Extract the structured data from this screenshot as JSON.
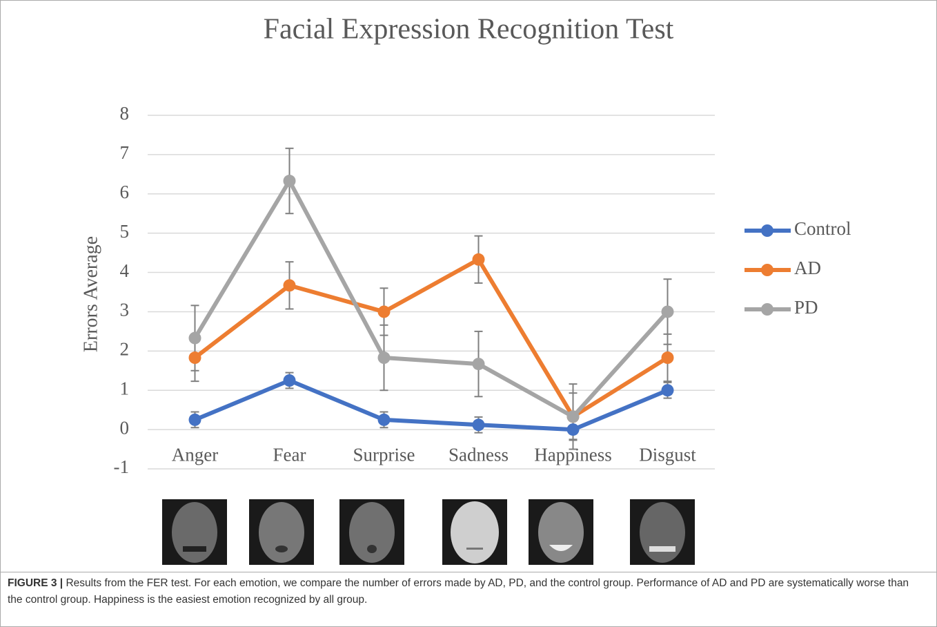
{
  "chart_data": {
    "type": "line",
    "title": "Facial Expression Recognition Test",
    "y_label": "Errors Average",
    "categories": [
      "Anger",
      "Fear",
      "Surprise",
      "Sadness",
      "Happiness",
      "Disgust"
    ],
    "series": [
      {
        "name": "Control",
        "color": "#4472c4",
        "values": [
          0.25,
          1.25,
          0.25,
          0.12,
          0,
          1.0
        ],
        "errors": [
          0.2,
          0.2,
          0.2,
          0.2,
          0.25,
          0.2
        ]
      },
      {
        "name": "AD",
        "color": "#ed7d31",
        "values": [
          1.83,
          3.67,
          3.0,
          4.33,
          0.33,
          1.83
        ],
        "errors": [
          0.6,
          0.6,
          0.6,
          0.6,
          0.6,
          0.6
        ]
      },
      {
        "name": "PD",
        "color": "#a5a5a5",
        "values": [
          2.33,
          6.33,
          1.83,
          1.67,
          0.33,
          3.0
        ],
        "errors": [
          0.83,
          0.83,
          0.83,
          0.83,
          0.83,
          0.83
        ]
      }
    ],
    "ylim": [
      -1,
      8
    ],
    "yticks": [
      -1,
      0,
      1,
      2,
      3,
      4,
      5,
      6,
      7,
      8
    ],
    "grid": true,
    "legend": "right"
  },
  "caption": {
    "label": "FIGURE 3 |",
    "text": "Results from the FER test. For each emotion, we compare the number of errors made by AD, PD, and the control group. Performance of AD and PD are systematically worse than the control group. Happiness is the easiest emotion recognized by all group."
  }
}
